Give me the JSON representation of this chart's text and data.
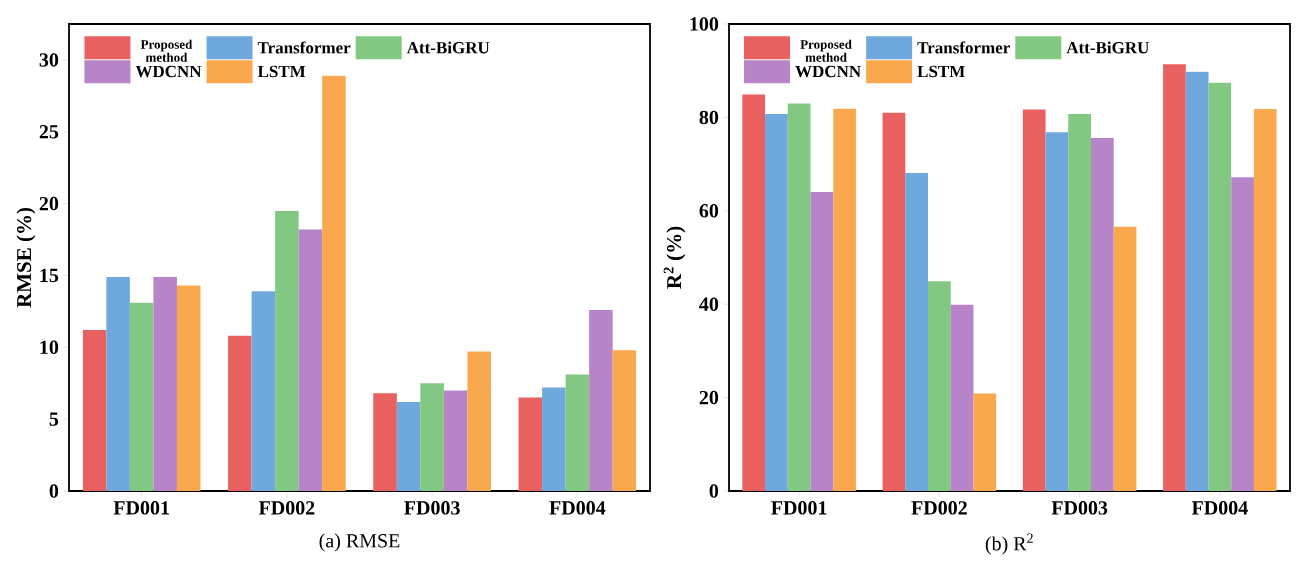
{
  "chart_data": [
    {
      "type": "bar",
      "title": "(a) RMSE",
      "ylabel": "RMSE (%)",
      "categories": [
        "FD001",
        "FD002",
        "FD003",
        "FD004"
      ],
      "series": [
        {
          "name": "Proposed method",
          "color": "#e8605f",
          "values": [
            11.2,
            10.8,
            6.8,
            6.5
          ]
        },
        {
          "name": "Transformer",
          "color": "#6fa8dc",
          "values": [
            14.9,
            13.9,
            6.2,
            7.2
          ]
        },
        {
          "name": "Att-BiGRU",
          "color": "#82c882",
          "values": [
            13.1,
            19.5,
            7.5,
            8.1
          ]
        },
        {
          "name": "WDCNN",
          "color": "#b784c8",
          "values": [
            14.9,
            18.2,
            7.0,
            12.6
          ]
        },
        {
          "name": "LSTM",
          "color": "#f9a84d",
          "values": [
            14.3,
            28.9,
            9.7,
            9.8
          ]
        }
      ],
      "ylim": [
        0,
        32.5
      ],
      "yticks": [
        0,
        5,
        10,
        15,
        20,
        25,
        30
      ],
      "legend": "top left"
    },
    {
      "type": "bar",
      "title": "(b) R$^{2}$",
      "ylabel": "R$^{2}$ (%)",
      "categories": [
        "FD001",
        "FD002",
        "FD003",
        "FD004"
      ],
      "series": [
        {
          "name": "Proposed method",
          "color": "#e8605f",
          "values": [
            84.9,
            81.0,
            81.7,
            91.4
          ]
        },
        {
          "name": "Transformer",
          "color": "#6fa8dc",
          "values": [
            80.7,
            68.1,
            76.8,
            89.8
          ]
        },
        {
          "name": "Att-BiGRU",
          "color": "#82c882",
          "values": [
            83.0,
            44.9,
            80.7,
            87.4
          ]
        },
        {
          "name": "WDCNN",
          "color": "#b784c8",
          "values": [
            64.0,
            39.9,
            75.6,
            67.2
          ]
        },
        {
          "name": "LSTM",
          "color": "#f9a84d",
          "values": [
            81.9,
            20.9,
            56.6,
            81.8
          ]
        }
      ],
      "ylim": [
        0,
        100
      ],
      "yticks": [
        0,
        20,
        40,
        60,
        80,
        100
      ],
      "legend": "top left"
    }
  ]
}
